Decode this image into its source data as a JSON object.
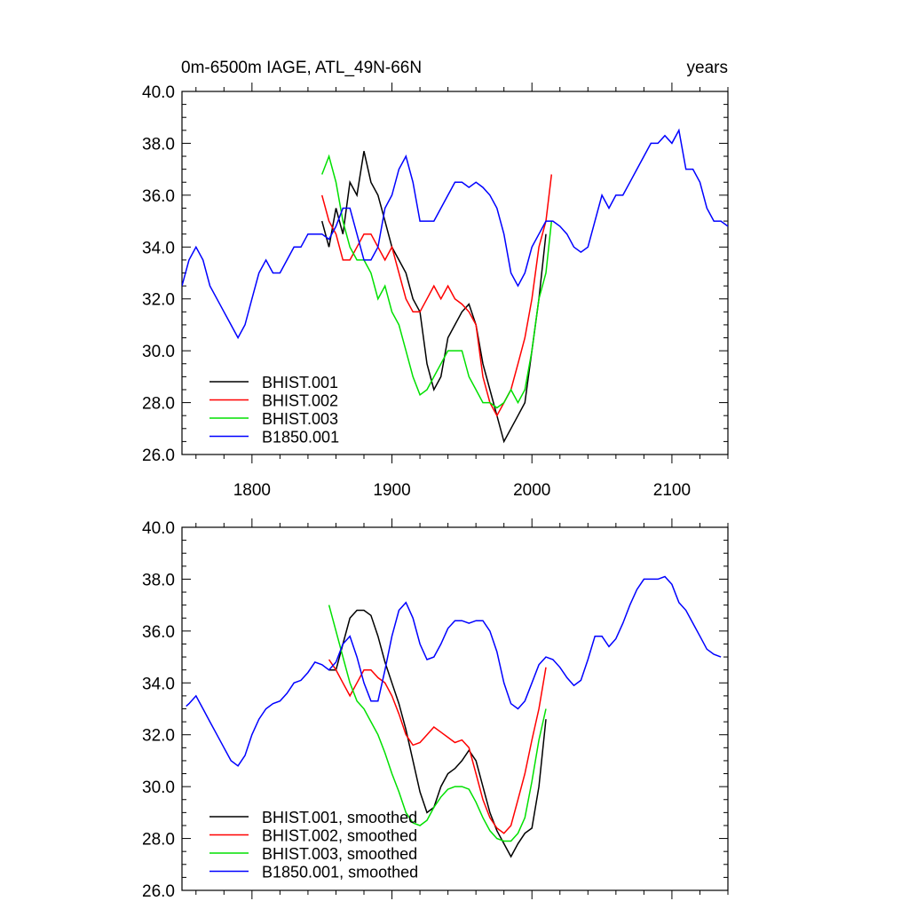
{
  "header": {
    "title_left": "0m-6500m IAGE, ATL_49N-66N",
    "title_right": "years"
  },
  "colors": {
    "BHIST.001": "#000000",
    "BHIST.002": "#ff0000",
    "BHIST.003": "#00e000",
    "B1850.001": "#0000ff"
  },
  "chart_data": [
    {
      "type": "line",
      "title": "0m-6500m IAGE, ATL_49N-66N",
      "units_label": "years",
      "xlim": [
        1750,
        2140
      ],
      "ylim": [
        26,
        40
      ],
      "yticks": [
        "26.0",
        "28.0",
        "30.0",
        "32.0",
        "34.0",
        "36.0",
        "38.0",
        "40.0"
      ],
      "xticks": [
        "1800",
        "1900",
        "2000",
        "2100"
      ],
      "legend_position": "bottom-left",
      "series": [
        {
          "name": "BHIST.001",
          "x": [
            1850,
            1855,
            1860,
            1865,
            1870,
            1875,
            1880,
            1885,
            1890,
            1895,
            1900,
            1905,
            1910,
            1915,
            1920,
            1925,
            1930,
            1935,
            1940,
            1945,
            1950,
            1955,
            1960,
            1965,
            1970,
            1975,
            1980,
            1985,
            1990,
            1995,
            2000,
            2005,
            2010
          ],
          "values": [
            35.0,
            34.0,
            35.5,
            34.5,
            36.5,
            36.0,
            37.7,
            36.5,
            36.0,
            35.0,
            34.0,
            33.5,
            33.0,
            32.0,
            31.5,
            29.5,
            28.5,
            29.0,
            30.5,
            31.0,
            31.5,
            31.8,
            31.0,
            29.5,
            28.5,
            27.5,
            26.5,
            27.0,
            27.5,
            28.0,
            30.0,
            32.0,
            34.5
          ]
        },
        {
          "name": "BHIST.002",
          "x": [
            1850,
            1855,
            1860,
            1865,
            1870,
            1875,
            1880,
            1885,
            1890,
            1895,
            1900,
            1905,
            1910,
            1915,
            1920,
            1925,
            1930,
            1935,
            1940,
            1945,
            1950,
            1955,
            1960,
            1965,
            1970,
            1975,
            1980,
            1985,
            1990,
            1995,
            2000,
            2005,
            2010,
            2014
          ],
          "values": [
            36.0,
            35.0,
            34.5,
            33.5,
            33.5,
            34.0,
            34.5,
            34.5,
            34.0,
            33.5,
            34.0,
            33.0,
            32.0,
            31.5,
            31.5,
            32.0,
            32.5,
            32.0,
            32.5,
            32.0,
            31.8,
            31.5,
            31.0,
            29.0,
            28.0,
            27.5,
            28.0,
            28.5,
            29.5,
            30.5,
            32.0,
            34.0,
            35.0,
            36.8
          ]
        },
        {
          "name": "BHIST.003",
          "x": [
            1850,
            1855,
            1860,
            1865,
            1870,
            1875,
            1880,
            1885,
            1890,
            1895,
            1900,
            1905,
            1910,
            1915,
            1920,
            1925,
            1930,
            1935,
            1940,
            1945,
            1950,
            1955,
            1960,
            1965,
            1970,
            1975,
            1980,
            1985,
            1990,
            1995,
            2000,
            2005,
            2010,
            2014
          ],
          "values": [
            36.8,
            37.5,
            36.5,
            35.0,
            34.0,
            33.5,
            33.5,
            33.0,
            32.0,
            32.5,
            31.5,
            31.0,
            30.0,
            29.0,
            28.3,
            28.5,
            29.0,
            29.5,
            30.0,
            30.0,
            30.0,
            29.0,
            28.5,
            28.0,
            28.0,
            27.8,
            28.0,
            28.5,
            28.0,
            28.5,
            30.0,
            32.0,
            33.0,
            35.0
          ]
        },
        {
          "name": "B1850.001",
          "x": [
            1750,
            1755,
            1760,
            1765,
            1770,
            1775,
            1780,
            1785,
            1790,
            1795,
            1800,
            1805,
            1810,
            1815,
            1820,
            1825,
            1830,
            1835,
            1840,
            1845,
            1850,
            1855,
            1860,
            1865,
            1870,
            1875,
            1880,
            1885,
            1890,
            1895,
            1900,
            1905,
            1910,
            1915,
            1920,
            1925,
            1930,
            1935,
            1940,
            1945,
            1950,
            1955,
            1960,
            1965,
            1970,
            1975,
            1980,
            1985,
            1990,
            1995,
            2000,
            2005,
            2010,
            2015,
            2020,
            2025,
            2030,
            2035,
            2040,
            2045,
            2050,
            2055,
            2060,
            2065,
            2070,
            2075,
            2080,
            2085,
            2090,
            2095,
            2100,
            2105,
            2110,
            2115,
            2120,
            2125,
            2130,
            2135,
            2140
          ],
          "values": [
            32.5,
            33.5,
            34.0,
            33.5,
            32.5,
            32.0,
            31.5,
            31.0,
            30.5,
            31.0,
            32.0,
            33.0,
            33.5,
            33.0,
            33.0,
            33.5,
            34.0,
            34.0,
            34.5,
            34.5,
            34.5,
            34.3,
            34.8,
            35.5,
            35.5,
            34.5,
            33.5,
            33.5,
            34.0,
            35.5,
            36.0,
            37.0,
            37.5,
            36.5,
            35.0,
            35.0,
            35.0,
            35.5,
            36.0,
            36.5,
            36.5,
            36.3,
            36.5,
            36.3,
            36.0,
            35.5,
            34.5,
            33.0,
            32.5,
            33.0,
            34.0,
            34.5,
            35.0,
            35.0,
            34.8,
            34.5,
            34.0,
            33.8,
            34.0,
            35.0,
            36.0,
            35.5,
            36.0,
            36.0,
            36.5,
            37.0,
            37.5,
            38.0,
            38.0,
            38.3,
            38.0,
            38.5,
            37.0,
            37.0,
            36.5,
            35.5,
            35.0,
            35.0,
            34.8
          ]
        }
      ]
    },
    {
      "type": "line",
      "xlim": [
        1750,
        2140
      ],
      "ylim": [
        26,
        40
      ],
      "yticks": [
        "26.0",
        "28.0",
        "30.0",
        "32.0",
        "34.0",
        "36.0",
        "38.0",
        "40.0"
      ],
      "legend_position": "bottom-left",
      "series": [
        {
          "name": "BHIST.001, smoothed",
          "x": [
            1855,
            1860,
            1865,
            1870,
            1875,
            1880,
            1885,
            1890,
            1895,
            1900,
            1905,
            1910,
            1915,
            1920,
            1925,
            1930,
            1935,
            1940,
            1945,
            1950,
            1955,
            1960,
            1965,
            1970,
            1975,
            1980,
            1985,
            1990,
            1995,
            2000,
            2005,
            2010
          ],
          "values": [
            34.5,
            34.5,
            35.5,
            36.5,
            36.8,
            36.8,
            36.6,
            35.8,
            34.8,
            34.0,
            33.2,
            32.2,
            31.0,
            29.8,
            29.0,
            29.2,
            30.0,
            30.5,
            30.7,
            31.0,
            31.4,
            31.0,
            30.0,
            29.0,
            28.3,
            27.8,
            27.3,
            27.8,
            28.2,
            28.4,
            30.0,
            32.6
          ]
        },
        {
          "name": "BHIST.002, smoothed",
          "x": [
            1855,
            1860,
            1865,
            1870,
            1875,
            1880,
            1885,
            1890,
            1895,
            1900,
            1905,
            1910,
            1915,
            1920,
            1925,
            1930,
            1935,
            1940,
            1945,
            1950,
            1955,
            1960,
            1965,
            1970,
            1975,
            1980,
            1985,
            1990,
            1995,
            2000,
            2005,
            2010
          ],
          "values": [
            34.9,
            34.5,
            34.0,
            33.5,
            34.0,
            34.5,
            34.5,
            34.2,
            34.0,
            33.5,
            32.8,
            32.0,
            31.6,
            31.7,
            32.0,
            32.3,
            32.1,
            31.9,
            31.7,
            31.8,
            31.5,
            30.5,
            29.5,
            28.8,
            28.4,
            28.2,
            28.5,
            29.5,
            30.5,
            31.8,
            33.0,
            34.6
          ]
        },
        {
          "name": "BHIST.003, smoothed",
          "x": [
            1855,
            1860,
            1865,
            1870,
            1875,
            1880,
            1885,
            1890,
            1895,
            1900,
            1905,
            1910,
            1915,
            1920,
            1925,
            1930,
            1935,
            1940,
            1945,
            1950,
            1955,
            1960,
            1965,
            1970,
            1975,
            1980,
            1985,
            1990,
            1995,
            2000,
            2005,
            2010
          ],
          "values": [
            37.0,
            36.0,
            35.0,
            34.0,
            33.3,
            33.0,
            32.5,
            32.0,
            31.3,
            30.5,
            29.8,
            29.0,
            28.6,
            28.5,
            28.7,
            29.2,
            29.6,
            29.9,
            30.0,
            30.0,
            29.9,
            29.4,
            28.8,
            28.3,
            28.0,
            27.9,
            27.9,
            28.2,
            28.8,
            30.2,
            31.8,
            33.0
          ]
        },
        {
          "name": "B1850.001, smoothed",
          "x": [
            1753,
            1755,
            1760,
            1765,
            1770,
            1775,
            1780,
            1785,
            1790,
            1795,
            1800,
            1805,
            1810,
            1815,
            1820,
            1825,
            1830,
            1835,
            1840,
            1845,
            1850,
            1855,
            1860,
            1865,
            1870,
            1875,
            1880,
            1885,
            1890,
            1895,
            1900,
            1905,
            1910,
            1915,
            1920,
            1925,
            1930,
            1935,
            1940,
            1945,
            1950,
            1955,
            1960,
            1965,
            1970,
            1975,
            1980,
            1985,
            1990,
            1995,
            2000,
            2005,
            2010,
            2015,
            2020,
            2025,
            2030,
            2035,
            2040,
            2045,
            2050,
            2055,
            2060,
            2065,
            2070,
            2075,
            2080,
            2085,
            2090,
            2095,
            2100,
            2105,
            2110,
            2115,
            2120,
            2125,
            2130,
            2135
          ],
          "values": [
            33.1,
            33.2,
            33.5,
            33.0,
            32.5,
            32.0,
            31.5,
            31.0,
            30.8,
            31.2,
            32.0,
            32.6,
            33.0,
            33.2,
            33.3,
            33.6,
            34.0,
            34.1,
            34.4,
            34.8,
            34.7,
            34.5,
            34.8,
            35.5,
            35.8,
            35.0,
            34.0,
            33.3,
            33.3,
            34.5,
            35.8,
            36.8,
            37.1,
            36.5,
            35.5,
            34.9,
            35.0,
            35.5,
            36.1,
            36.4,
            36.4,
            36.3,
            36.4,
            36.4,
            36.0,
            35.2,
            34.0,
            33.2,
            33.0,
            33.3,
            34.0,
            34.7,
            35.0,
            34.9,
            34.6,
            34.2,
            33.9,
            34.1,
            34.9,
            35.8,
            35.8,
            35.4,
            35.7,
            36.3,
            37.0,
            37.6,
            38.0,
            38.0,
            38.0,
            38.1,
            37.8,
            37.1,
            36.8,
            36.3,
            35.8,
            35.3,
            35.1,
            35.0
          ]
        }
      ]
    }
  ]
}
